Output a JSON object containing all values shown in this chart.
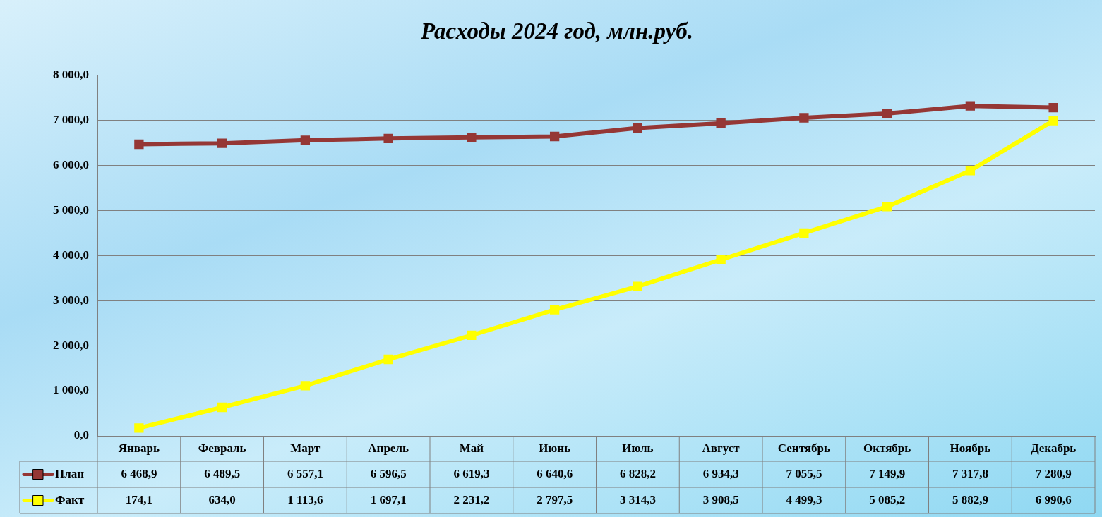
{
  "chart_data": {
    "type": "line",
    "title": "Расходы 2024 год, млн.руб.",
    "categories": [
      "Январь",
      "Февраль",
      "Март",
      "Апрель",
      "Май",
      "Июнь",
      "Июль",
      "Август",
      "Сентябрь",
      "Октябрь",
      "Ноябрь",
      "Декабрь"
    ],
    "series": [
      {
        "name": "План",
        "color": "#953735",
        "values": [
          6468.9,
          6489.5,
          6557.1,
          6596.5,
          6619.3,
          6640.6,
          6828.2,
          6934.3,
          7055.5,
          7149.9,
          7317.8,
          7280.9
        ],
        "value_labels": [
          "6 468,9",
          "6 489,5",
          "6 557,1",
          "6 596,5",
          "6 619,3",
          "6 640,6",
          "6 828,2",
          "6 934,3",
          "7 055,5",
          "7 149,9",
          "7 317,8",
          "7 280,9"
        ]
      },
      {
        "name": "Факт",
        "color": "#ffff00",
        "values": [
          174.1,
          634.0,
          1113.6,
          1697.1,
          2231.2,
          2797.5,
          3314.3,
          3908.5,
          4499.3,
          5085.2,
          5882.9,
          6990.6
        ],
        "value_labels": [
          "174,1",
          "634,0",
          "1 113,6",
          "1 697,1",
          "2 231,2",
          "2 797,5",
          "3 314,3",
          "3 908,5",
          "4 499,3",
          "5 085,2",
          "5 882,9",
          "6 990,6"
        ]
      }
    ],
    "ylim": [
      0,
      8000
    ],
    "yticks": [
      {
        "value": 0,
        "label": "0,0"
      },
      {
        "value": 1000,
        "label": "1 000,0"
      },
      {
        "value": 2000,
        "label": "2 000,0"
      },
      {
        "value": 3000,
        "label": "3 000,0"
      },
      {
        "value": 4000,
        "label": "4 000,0"
      },
      {
        "value": 5000,
        "label": "5 000,0"
      },
      {
        "value": 6000,
        "label": "6 000,0"
      },
      {
        "value": 7000,
        "label": "7 000,0"
      },
      {
        "value": 8000,
        "label": "8 000,0"
      }
    ],
    "grid": "y",
    "legend": "bottom left",
    "marker": "square",
    "line_style": "solid"
  }
}
